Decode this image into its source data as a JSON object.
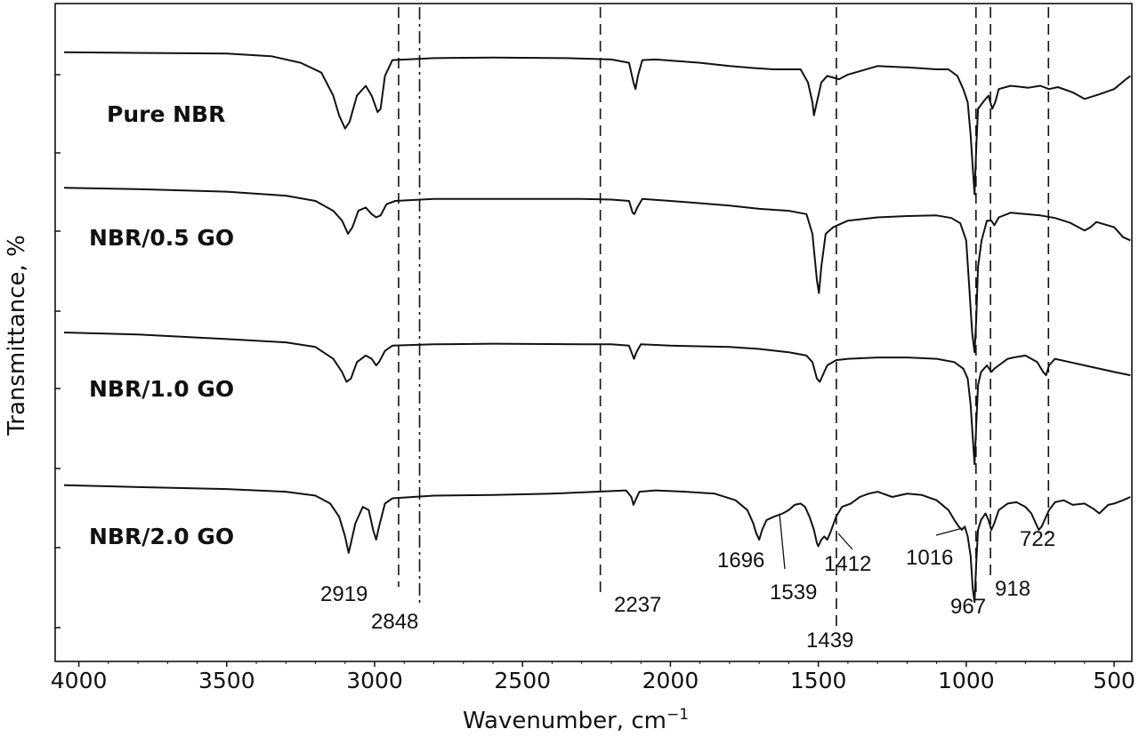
{
  "chart_data": {
    "type": "line",
    "title": "",
    "xlabel": "Wavenumber, cm",
    "xlabel_sup": "−1",
    "ylabel": "Transmittance, %",
    "xlim": [
      4080,
      440
    ],
    "x_reversed": true,
    "ylim": [
      0,
      1
    ],
    "grid": false,
    "legend": "none",
    "x_ticks": [
      4000,
      3500,
      3000,
      2500,
      2000,
      1500,
      1000,
      500
    ],
    "x_tick_labels": [
      "4000",
      "3500",
      "3000",
      "2500",
      "2000",
      "1500",
      "1000",
      "500"
    ],
    "y_tick_labels_shown": false,
    "line_color": "#111111",
    "series": [
      {
        "name": "Pure NBR",
        "points": [
          [
            4050,
            0.926
          ],
          [
            3800,
            0.925
          ],
          [
            3500,
            0.924
          ],
          [
            3350,
            0.92
          ],
          [
            3250,
            0.91
          ],
          [
            3180,
            0.895
          ],
          [
            3140,
            0.86
          ],
          [
            3120,
            0.83
          ],
          [
            3100,
            0.81
          ],
          [
            3085,
            0.82
          ],
          [
            3060,
            0.86
          ],
          [
            3030,
            0.875
          ],
          [
            3010,
            0.86
          ],
          [
            2990,
            0.835
          ],
          [
            2980,
            0.84
          ],
          [
            2965,
            0.89
          ],
          [
            2940,
            0.914
          ],
          [
            2800,
            0.917
          ],
          [
            2600,
            0.918
          ],
          [
            2350,
            0.917
          ],
          [
            2200,
            0.915
          ],
          [
            2140,
            0.91
          ],
          [
            2125,
            0.88
          ],
          [
            2118,
            0.87
          ],
          [
            2110,
            0.89
          ],
          [
            2095,
            0.914
          ],
          [
            2050,
            0.915
          ],
          [
            1900,
            0.91
          ],
          [
            1800,
            0.905
          ],
          [
            1720,
            0.902
          ],
          [
            1650,
            0.9
          ],
          [
            1560,
            0.9
          ],
          [
            1535,
            0.88
          ],
          [
            1520,
            0.85
          ],
          [
            1515,
            0.83
          ],
          [
            1505,
            0.85
          ],
          [
            1490,
            0.88
          ],
          [
            1470,
            0.89
          ],
          [
            1430,
            0.885
          ],
          [
            1400,
            0.892
          ],
          [
            1300,
            0.905
          ],
          [
            1200,
            0.903
          ],
          [
            1100,
            0.9
          ],
          [
            1060,
            0.9
          ],
          [
            1030,
            0.89
          ],
          [
            1010,
            0.87
          ],
          [
            995,
            0.85
          ],
          [
            985,
            0.8
          ],
          [
            978,
            0.75
          ],
          [
            972,
            0.71
          ],
          [
            966,
            0.78
          ],
          [
            960,
            0.84
          ],
          [
            940,
            0.852
          ],
          [
            925,
            0.86
          ],
          [
            912,
            0.84
          ],
          [
            902,
            0.85
          ],
          [
            890,
            0.87
          ],
          [
            850,
            0.875
          ],
          [
            790,
            0.872
          ],
          [
            750,
            0.875
          ],
          [
            720,
            0.87
          ],
          [
            690,
            0.873
          ],
          [
            640,
            0.865
          ],
          [
            600,
            0.855
          ],
          [
            550,
            0.862
          ],
          [
            500,
            0.87
          ],
          [
            460,
            0.885
          ],
          [
            445,
            0.89
          ]
        ]
      },
      {
        "name": "NBR/0.5 GO",
        "points": [
          [
            4050,
            0.72
          ],
          [
            3800,
            0.718
          ],
          [
            3500,
            0.714
          ],
          [
            3300,
            0.708
          ],
          [
            3200,
            0.7
          ],
          [
            3140,
            0.685
          ],
          [
            3110,
            0.67
          ],
          [
            3090,
            0.65
          ],
          [
            3075,
            0.66
          ],
          [
            3055,
            0.685
          ],
          [
            3030,
            0.69
          ],
          [
            3010,
            0.68
          ],
          [
            2995,
            0.675
          ],
          [
            2980,
            0.678
          ],
          [
            2960,
            0.695
          ],
          [
            2930,
            0.7
          ],
          [
            2800,
            0.703
          ],
          [
            2600,
            0.703
          ],
          [
            2300,
            0.703
          ],
          [
            2200,
            0.702
          ],
          [
            2140,
            0.7
          ],
          [
            2128,
            0.682
          ],
          [
            2122,
            0.68
          ],
          [
            2112,
            0.69
          ],
          [
            2095,
            0.703
          ],
          [
            2000,
            0.7
          ],
          [
            1800,
            0.693
          ],
          [
            1700,
            0.688
          ],
          [
            1600,
            0.685
          ],
          [
            1540,
            0.68
          ],
          [
            1520,
            0.65
          ],
          [
            1505,
            0.58
          ],
          [
            1498,
            0.56
          ],
          [
            1490,
            0.6
          ],
          [
            1475,
            0.65
          ],
          [
            1450,
            0.66
          ],
          [
            1400,
            0.67
          ],
          [
            1300,
            0.675
          ],
          [
            1200,
            0.677
          ],
          [
            1100,
            0.678
          ],
          [
            1050,
            0.674
          ],
          [
            1020,
            0.666
          ],
          [
            1000,
            0.64
          ],
          [
            990,
            0.57
          ],
          [
            980,
            0.5
          ],
          [
            972,
            0.47
          ],
          [
            966,
            0.52
          ],
          [
            960,
            0.6
          ],
          [
            948,
            0.64
          ],
          [
            930,
            0.67
          ],
          [
            915,
            0.67
          ],
          [
            905,
            0.663
          ],
          [
            890,
            0.675
          ],
          [
            850,
            0.682
          ],
          [
            800,
            0.68
          ],
          [
            750,
            0.678
          ],
          [
            700,
            0.674
          ],
          [
            650,
            0.667
          ],
          [
            600,
            0.655
          ],
          [
            580,
            0.66
          ],
          [
            560,
            0.668
          ],
          [
            500,
            0.66
          ],
          [
            470,
            0.645
          ],
          [
            445,
            0.64
          ]
        ]
      },
      {
        "name": "NBR/1.0 GO",
        "points": [
          [
            4050,
            0.5
          ],
          [
            3800,
            0.497
          ],
          [
            3500,
            0.49
          ],
          [
            3300,
            0.485
          ],
          [
            3200,
            0.478
          ],
          [
            3140,
            0.46
          ],
          [
            3110,
            0.44
          ],
          [
            3095,
            0.425
          ],
          [
            3080,
            0.43
          ],
          [
            3060,
            0.455
          ],
          [
            3030,
            0.465
          ],
          [
            3010,
            0.46
          ],
          [
            2995,
            0.45
          ],
          [
            2985,
            0.455
          ],
          [
            2965,
            0.472
          ],
          [
            2940,
            0.48
          ],
          [
            2800,
            0.482
          ],
          [
            2600,
            0.483
          ],
          [
            2300,
            0.482
          ],
          [
            2200,
            0.482
          ],
          [
            2140,
            0.48
          ],
          [
            2130,
            0.468
          ],
          [
            2123,
            0.46
          ],
          [
            2115,
            0.47
          ],
          [
            2100,
            0.482
          ],
          [
            2000,
            0.48
          ],
          [
            1800,
            0.478
          ],
          [
            1700,
            0.475
          ],
          [
            1600,
            0.47
          ],
          [
            1540,
            0.465
          ],
          [
            1520,
            0.455
          ],
          [
            1505,
            0.43
          ],
          [
            1495,
            0.425
          ],
          [
            1485,
            0.435
          ],
          [
            1470,
            0.45
          ],
          [
            1440,
            0.458
          ],
          [
            1400,
            0.46
          ],
          [
            1300,
            0.462
          ],
          [
            1200,
            0.462
          ],
          [
            1100,
            0.46
          ],
          [
            1040,
            0.455
          ],
          [
            1010,
            0.445
          ],
          [
            995,
            0.43
          ],
          [
            985,
            0.39
          ],
          [
            978,
            0.34
          ],
          [
            972,
            0.3
          ],
          [
            966,
            0.36
          ],
          [
            960,
            0.42
          ],
          [
            950,
            0.44
          ],
          [
            930,
            0.45
          ],
          [
            915,
            0.44
          ],
          [
            905,
            0.445
          ],
          [
            890,
            0.45
          ],
          [
            860,
            0.46
          ],
          [
            840,
            0.462
          ],
          [
            800,
            0.465
          ],
          [
            760,
            0.455
          ],
          [
            740,
            0.44
          ],
          [
            730,
            0.435
          ],
          [
            720,
            0.45
          ],
          [
            700,
            0.46
          ],
          [
            650,
            0.455
          ],
          [
            600,
            0.45
          ],
          [
            500,
            0.44
          ],
          [
            445,
            0.435
          ]
        ]
      },
      {
        "name": "NBR/2.0 GO",
        "points": [
          [
            4050,
            0.268
          ],
          [
            3800,
            0.265
          ],
          [
            3500,
            0.262
          ],
          [
            3300,
            0.258
          ],
          [
            3200,
            0.252
          ],
          [
            3150,
            0.24
          ],
          [
            3120,
            0.22
          ],
          [
            3100,
            0.19
          ],
          [
            3088,
            0.165
          ],
          [
            3080,
            0.18
          ],
          [
            3065,
            0.21
          ],
          [
            3040,
            0.235
          ],
          [
            3020,
            0.23
          ],
          [
            3005,
            0.2
          ],
          [
            2995,
            0.185
          ],
          [
            2985,
            0.205
          ],
          [
            2965,
            0.24
          ],
          [
            2940,
            0.248
          ],
          [
            2800,
            0.252
          ],
          [
            2600,
            0.253
          ],
          [
            2400,
            0.255
          ],
          [
            2250,
            0.258
          ],
          [
            2150,
            0.26
          ],
          [
            2132,
            0.25
          ],
          [
            2125,
            0.238
          ],
          [
            2118,
            0.245
          ],
          [
            2105,
            0.258
          ],
          [
            2050,
            0.26
          ],
          [
            1950,
            0.258
          ],
          [
            1850,
            0.255
          ],
          [
            1780,
            0.245
          ],
          [
            1740,
            0.23
          ],
          [
            1720,
            0.21
          ],
          [
            1710,
            0.195
          ],
          [
            1700,
            0.185
          ],
          [
            1690,
            0.2
          ],
          [
            1675,
            0.215
          ],
          [
            1650,
            0.22
          ],
          [
            1620,
            0.225
          ],
          [
            1600,
            0.23
          ],
          [
            1580,
            0.238
          ],
          [
            1560,
            0.24
          ],
          [
            1545,
            0.235
          ],
          [
            1530,
            0.22
          ],
          [
            1515,
            0.2
          ],
          [
            1505,
            0.18
          ],
          [
            1500,
            0.175
          ],
          [
            1490,
            0.185
          ],
          [
            1480,
            0.19
          ],
          [
            1470,
            0.185
          ],
          [
            1460,
            0.195
          ],
          [
            1440,
            0.22
          ],
          [
            1420,
            0.235
          ],
          [
            1390,
            0.24
          ],
          [
            1360,
            0.25
          ],
          [
            1330,
            0.255
          ],
          [
            1300,
            0.258
          ],
          [
            1250,
            0.25
          ],
          [
            1200,
            0.255
          ],
          [
            1150,
            0.253
          ],
          [
            1100,
            0.245
          ],
          [
            1060,
            0.23
          ],
          [
            1040,
            0.215
          ],
          [
            1025,
            0.205
          ],
          [
            1015,
            0.2
          ],
          [
            1005,
            0.205
          ],
          [
            995,
            0.19
          ],
          [
            985,
            0.16
          ],
          [
            978,
            0.11
          ],
          [
            972,
            0.09
          ],
          [
            966,
            0.15
          ],
          [
            960,
            0.2
          ],
          [
            950,
            0.215
          ],
          [
            935,
            0.225
          ],
          [
            925,
            0.215
          ],
          [
            915,
            0.2
          ],
          [
            905,
            0.21
          ],
          [
            890,
            0.23
          ],
          [
            860,
            0.24
          ],
          [
            830,
            0.242
          ],
          [
            800,
            0.235
          ],
          [
            780,
            0.225
          ],
          [
            765,
            0.21
          ],
          [
            755,
            0.2
          ],
          [
            745,
            0.205
          ],
          [
            735,
            0.215
          ],
          [
            720,
            0.23
          ],
          [
            700,
            0.242
          ],
          [
            670,
            0.245
          ],
          [
            640,
            0.238
          ],
          [
            600,
            0.24
          ],
          [
            570,
            0.232
          ],
          [
            550,
            0.225
          ],
          [
            520,
            0.238
          ],
          [
            500,
            0.24
          ],
          [
            470,
            0.245
          ],
          [
            445,
            0.25
          ]
        ]
      }
    ],
    "reference_lines": [
      {
        "x": 2919,
        "style": "dashed"
      },
      {
        "x": 2848,
        "style": "dashdot"
      },
      {
        "x": 2237,
        "style": "dashed"
      },
      {
        "x": 1439,
        "style": "dashed"
      },
      {
        "x": 967,
        "style": "dashed"
      },
      {
        "x": 918,
        "style": "dashed"
      },
      {
        "x": 722,
        "style": "dashed"
      }
    ],
    "annotations": [
      "2919",
      "2848",
      "2237",
      "1696",
      "1539",
      "1412",
      "1439",
      "1016",
      "967",
      "918",
      "722"
    ]
  }
}
